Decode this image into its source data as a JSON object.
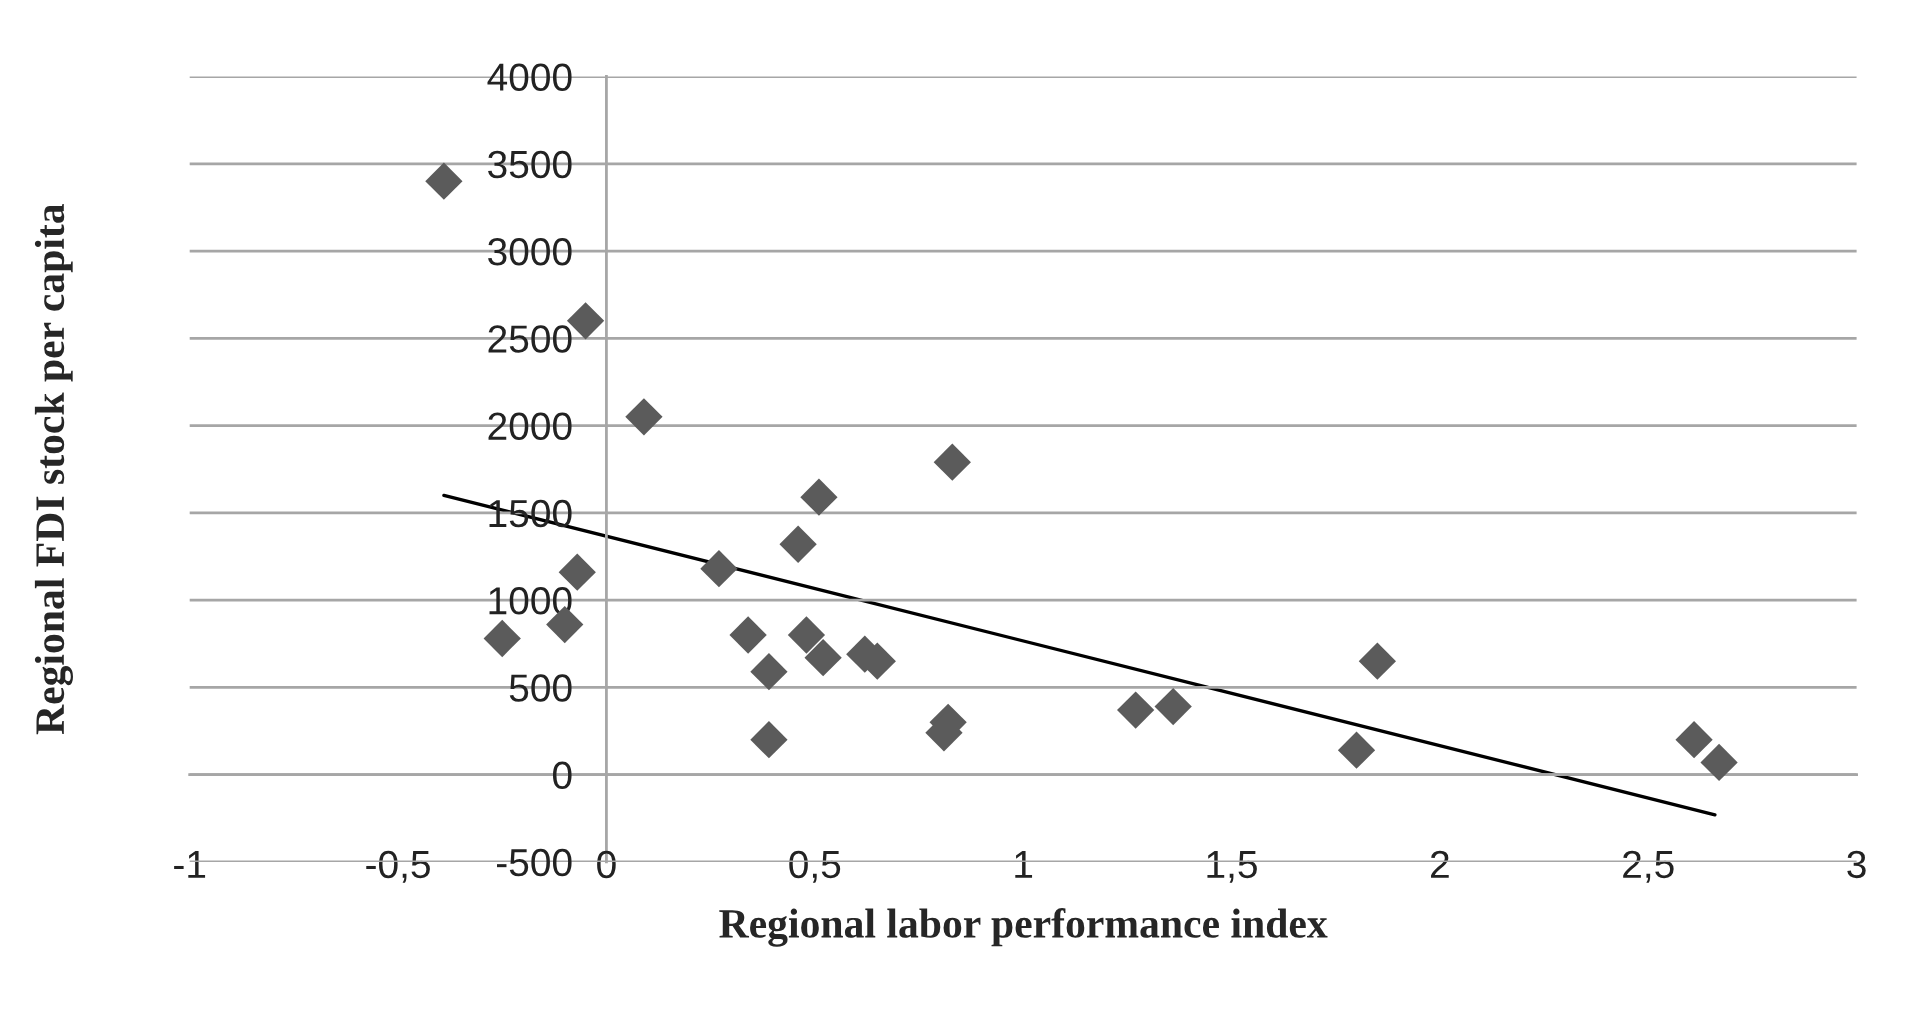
{
  "chart_data": {
    "type": "scatter",
    "xlabel": "Regional labor performance index",
    "ylabel": "Regional FDI stock per capita",
    "series": [
      {
        "color": "#5b5b5b",
        "marker": "diamond",
        "x": [
          -0.39,
          -0.05,
          0.09,
          0.83,
          0.51,
          0.46,
          0.27,
          -0.07,
          -0.25,
          -0.1,
          0.34,
          0.48,
          0.52,
          0.62,
          0.65,
          0.39,
          0.39,
          0.82,
          0.81,
          1.27,
          1.36,
          1.85,
          1.8,
          2.61,
          2.67
        ],
        "values": [
          3400,
          2600,
          2050,
          1790,
          1590,
          1320,
          1180,
          1160,
          780,
          860,
          800,
          800,
          670,
          690,
          650,
          590,
          200,
          300,
          240,
          370,
          390,
          650,
          140,
          200,
          70
        ]
      },
      {
        "type": "line",
        "color": "#000000",
        "marker": "none",
        "line_style": "solid",
        "x": [
          -0.39,
          2.66
        ],
        "values": [
          1600,
          -230
        ]
      }
    ],
    "xlim": [
      -1,
      3
    ],
    "ylim": [
      -500,
      4000
    ],
    "xticks": [
      -1,
      {
        "value": -0.5,
        "label": "-0,5"
      },
      0,
      {
        "value": 0.5,
        "label": "0,5"
      },
      1,
      {
        "value": 1.5,
        "label": "1,5"
      },
      2,
      {
        "value": 2.5,
        "label": "2,5"
      },
      3
    ],
    "yticks": [
      -500,
      0,
      500,
      1000,
      1500,
      2000,
      2500,
      3000,
      3500,
      4000
    ],
    "grid": "y"
  }
}
